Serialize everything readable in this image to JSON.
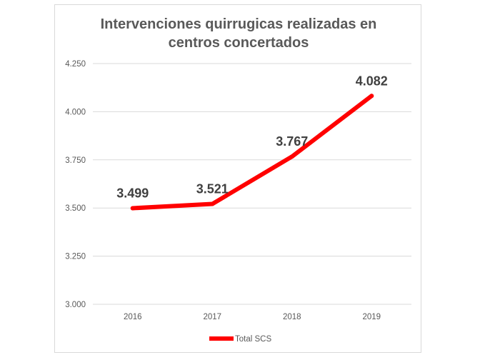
{
  "chart_data": {
    "type": "line",
    "title": [
      "Intervenciones quirrugicas realizadas en",
      "centros concertados"
    ],
    "categories": [
      "2016",
      "2017",
      "2018",
      "2019"
    ],
    "series": [
      {
        "name": "Total SCS",
        "values": [
          3499,
          3521,
          3767,
          4082
        ],
        "color": "#ff0000"
      }
    ],
    "data_labels": [
      "3.499",
      "3.521",
      "3.767",
      "4.082"
    ],
    "y_ticks": [
      3000,
      3250,
      3500,
      3750,
      4000,
      4250
    ],
    "y_tick_labels": [
      "3.000",
      "3.250",
      "3.500",
      "3.750",
      "4.000",
      "4.250"
    ],
    "ylim": [
      3000,
      4250
    ],
    "grid": true,
    "legend_position": "bottom",
    "xlabel": "",
    "ylabel": ""
  }
}
